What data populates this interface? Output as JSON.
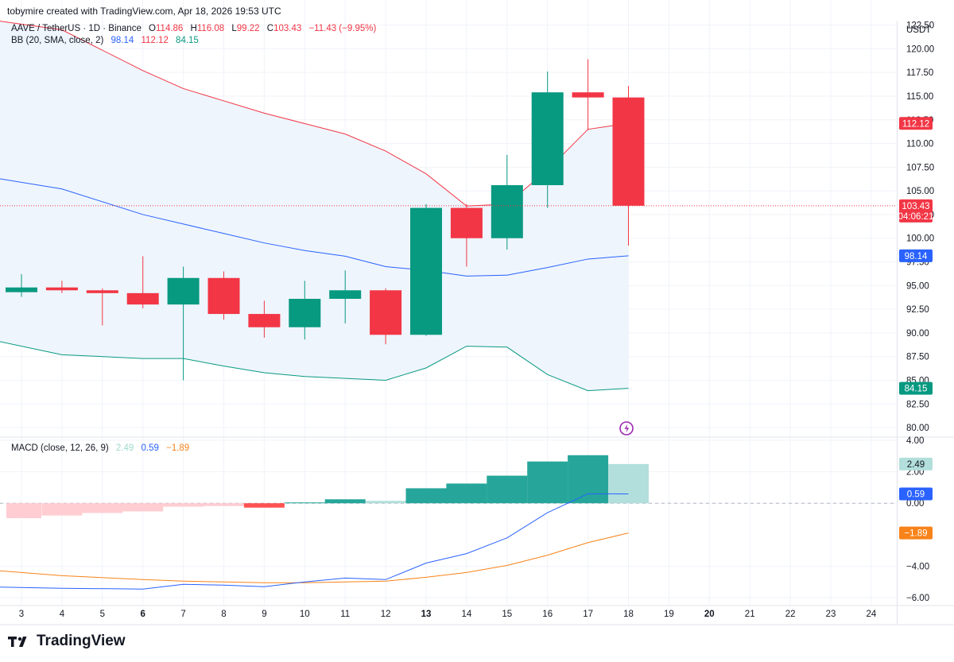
{
  "header": {
    "credit": "tobymire created with TradingView.com, Apr 18, 2026 19:53 UTC"
  },
  "legend": {
    "symbol": "AAVE / TetherUS · 1D · Binance",
    "o_label": "O",
    "o_value": "114.86",
    "h_label": "H",
    "h_value": "116.08",
    "l_label": "L",
    "l_value": "99.22",
    "c_label": "C",
    "c_value": "103.43",
    "change": "−11.43 (−9.95%)",
    "bb_label": "BB (20, SMA, close, 2)",
    "bb_basis": "98.14",
    "bb_upper": "112.12",
    "bb_lower": "84.15",
    "macd_label": "MACD (close, 12, 26, 9)",
    "macd_hist": "2.49",
    "macd_line": "0.59",
    "macd_signal": "−1.89"
  },
  "brand": {
    "name": "TradingView"
  },
  "colors": {
    "up": "#089981",
    "down": "#f23645",
    "basis": "#2962ff",
    "upper": "#f23645",
    "lower": "#089981",
    "band_fill": "#eef5fd",
    "macd": "#2962ff",
    "signal": "#f7831a",
    "hist_up_strong": "#26a69a",
    "hist_up_weak": "#b2dfdb",
    "hist_down_strong": "#ff5252",
    "hist_down_weak": "#ffcdd2"
  },
  "chart_data": {
    "type": "candlestick",
    "currency": "USDT",
    "x_ticks": [
      {
        "label": "3",
        "day": 3,
        "bold": false
      },
      {
        "label": "4",
        "day": 4,
        "bold": false
      },
      {
        "label": "5",
        "day": 5,
        "bold": false
      },
      {
        "label": "6",
        "day": 6,
        "bold": true
      },
      {
        "label": "7",
        "day": 7,
        "bold": false
      },
      {
        "label": "8",
        "day": 8,
        "bold": false
      },
      {
        "label": "9",
        "day": 9,
        "bold": false
      },
      {
        "label": "10",
        "day": 10,
        "bold": false
      },
      {
        "label": "11",
        "day": 11,
        "bold": false
      },
      {
        "label": "12",
        "day": 12,
        "bold": false
      },
      {
        "label": "13",
        "day": 13,
        "bold": true
      },
      {
        "label": "14",
        "day": 14,
        "bold": false
      },
      {
        "label": "15",
        "day": 15,
        "bold": false
      },
      {
        "label": "16",
        "day": 16,
        "bold": false
      },
      {
        "label": "17",
        "day": 17,
        "bold": false
      },
      {
        "label": "18",
        "day": 18,
        "bold": false
      },
      {
        "label": "19",
        "day": 19,
        "bold": false
      },
      {
        "label": "20",
        "day": 20,
        "bold": true
      },
      {
        "label": "21",
        "day": 21,
        "bold": false
      },
      {
        "label": "22",
        "day": 22,
        "bold": false
      },
      {
        "label": "23",
        "day": 23,
        "bold": false
      },
      {
        "label": "24",
        "day": 24,
        "bold": false
      }
    ],
    "price_axis": {
      "ticks": [
        "122.50",
        "120.00",
        "117.50",
        "115.00",
        "112.50",
        "110.00",
        "107.50",
        "105.00",
        "102.50",
        "100.00",
        "97.50",
        "95.00",
        "92.50",
        "90.00",
        "87.50",
        "85.00",
        "82.50",
        "80.00"
      ],
      "ylim": [
        79.0,
        122.8
      ],
      "grid": true
    },
    "candles": [
      {
        "day": 3,
        "o": 94.3,
        "h": 96.2,
        "l": 93.8,
        "c": 94.8
      },
      {
        "day": 4,
        "o": 94.8,
        "h": 95.5,
        "l": 94.2,
        "c": 94.5
      },
      {
        "day": 5,
        "o": 94.5,
        "h": 94.7,
        "l": 90.8,
        "c": 94.2
      },
      {
        "day": 6,
        "o": 94.2,
        "h": 98.1,
        "l": 92.6,
        "c": 93.0
      },
      {
        "day": 7,
        "o": 93.0,
        "h": 97.0,
        "l": 85.0,
        "c": 95.8
      },
      {
        "day": 8,
        "o": 95.8,
        "h": 96.5,
        "l": 91.4,
        "c": 92.0
      },
      {
        "day": 9,
        "o": 92.0,
        "h": 93.4,
        "l": 89.5,
        "c": 90.6
      },
      {
        "day": 10,
        "o": 90.6,
        "h": 95.5,
        "l": 89.3,
        "c": 93.6
      },
      {
        "day": 11,
        "o": 93.6,
        "h": 96.6,
        "l": 91.0,
        "c": 94.5
      },
      {
        "day": 12,
        "o": 94.5,
        "h": 94.7,
        "l": 88.8,
        "c": 89.8
      },
      {
        "day": 13,
        "o": 89.8,
        "h": 103.6,
        "l": 89.7,
        "c": 103.2
      },
      {
        "day": 14,
        "o": 103.2,
        "h": 103.6,
        "l": 97.0,
        "c": 100.0
      },
      {
        "day": 15,
        "o": 100.0,
        "h": 108.8,
        "l": 98.8,
        "c": 105.6
      },
      {
        "day": 16,
        "o": 105.6,
        "h": 117.6,
        "l": 103.2,
        "c": 115.4
      },
      {
        "day": 17,
        "o": 115.4,
        "h": 118.9,
        "l": 111.4,
        "c": 114.86
      },
      {
        "day": 18,
        "o": 114.86,
        "h": 116.08,
        "l": 99.22,
        "c": 103.43
      }
    ],
    "bollinger": {
      "name": "BB (20, SMA, close, 2)",
      "days": [
        2,
        4,
        6,
        7,
        8,
        9,
        10,
        11,
        12,
        13,
        14,
        15,
        16,
        17,
        18
      ],
      "upper": [
        123.2,
        122.0,
        117.7,
        115.8,
        114.5,
        113.2,
        112.1,
        111.0,
        109.2,
        106.8,
        103.4,
        103.6,
        107.2,
        111.5,
        112.12
      ],
      "basis": [
        106.6,
        105.2,
        102.5,
        101.5,
        100.5,
        99.5,
        98.7,
        98.1,
        97.0,
        96.6,
        96.0,
        96.1,
        96.9,
        97.8,
        98.14
      ],
      "lower": [
        89.5,
        87.7,
        87.3,
        87.3,
        86.5,
        85.8,
        85.4,
        85.2,
        85.0,
        86.3,
        88.6,
        88.5,
        85.6,
        83.9,
        84.15
      ]
    },
    "current_price": {
      "value": "103.43",
      "countdown": "04:06:21"
    },
    "macd": {
      "name": "MACD (close, 12, 26, 9)",
      "ylim": [
        -6.5,
        4.2
      ],
      "ticks": [
        "4.00",
        "2.00",
        "0.00",
        "−4.00",
        "−6.00"
      ],
      "tick_values": [
        4,
        2,
        0,
        -4,
        -6
      ],
      "hist": [
        {
          "day": 2.5,
          "v": -0.95
        },
        {
          "day": 4,
          "v": -0.78
        },
        {
          "day": 5,
          "v": -0.62
        },
        {
          "day": 6,
          "v": -0.52
        },
        {
          "day": 7,
          "v": -0.22
        },
        {
          "day": 8,
          "v": -0.18
        },
        {
          "day": 9,
          "v": -0.28
        },
        {
          "day": 10,
          "v": 0.05
        },
        {
          "day": 11,
          "v": 0.25
        },
        {
          "day": 12,
          "v": 0.15
        },
        {
          "day": 13,
          "v": 0.95
        },
        {
          "day": 14,
          "v": 1.25
        },
        {
          "day": 15,
          "v": 1.75
        },
        {
          "day": 16,
          "v": 2.65
        },
        {
          "day": 17,
          "v": 3.05
        },
        {
          "day": 18,
          "v": 2.49
        }
      ],
      "macd_line": {
        "days": [
          2,
          4,
          6,
          7,
          8,
          9,
          10,
          11,
          12,
          13,
          14,
          15,
          16,
          17,
          18
        ],
        "values": [
          -5.3,
          -5.4,
          -5.45,
          -5.15,
          -5.2,
          -5.3,
          -5.0,
          -4.75,
          -4.85,
          -3.8,
          -3.2,
          -2.2,
          -0.6,
          0.6,
          0.59
        ]
      },
      "signal_line": {
        "days": [
          2,
          4,
          6,
          7,
          8,
          9,
          10,
          11,
          12,
          13,
          14,
          15,
          16,
          17,
          18
        ],
        "values": [
          -4.2,
          -4.6,
          -4.85,
          -4.95,
          -5.0,
          -5.05,
          -5.05,
          -5.0,
          -4.95,
          -4.7,
          -4.4,
          -3.95,
          -3.3,
          -2.5,
          -1.89
        ]
      }
    }
  }
}
